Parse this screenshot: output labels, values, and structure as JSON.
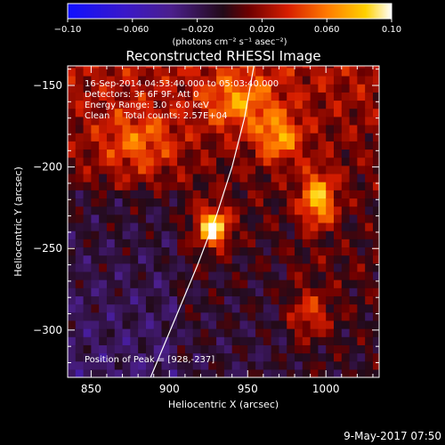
{
  "chart_data": {
    "type": "heatmap",
    "title": "Reconstructed RHESSI Image",
    "xlabel": "Heliocentric X (arcsec)",
    "ylabel": "Heliocentric Y (arcsec)",
    "xlim": [
      835,
      1034
    ],
    "ylim": [
      -329,
      -138
    ],
    "x_ticks": [
      850,
      900,
      950,
      1000
    ],
    "x_tick_labels": [
      "850",
      "900",
      "950",
      "1000"
    ],
    "y_ticks": [
      -150,
      -200,
      -250,
      -300
    ],
    "y_tick_labels": [
      "-150",
      "-200",
      "-250",
      "-300"
    ],
    "colorbar": {
      "range": [
        -0.1,
        0.1
      ],
      "ticks": [
        -0.1,
        -0.06,
        -0.02,
        0.02,
        0.06,
        0.1
      ],
      "tick_labels": [
        "-0.10",
        "-0.060",
        "-0.020",
        "0.020",
        "0.060",
        "0.10"
      ],
      "units_label": "(photons cm⁻² s⁻¹ asec⁻²)",
      "colormap": "blue-purple-red-orange-yellow-white"
    },
    "info_lines": [
      "16-Sep-2014 04:53:40.000 to 05:03:40.000",
      "Detectors: 3F 6F 9F, Att 0",
      "Energy Range: 3.0 - 6.0 keV",
      "Clean     Total counts: 2.57E+04"
    ],
    "peak_label": "Position of Peak = [928,-237]",
    "peak": {
      "x": 928,
      "y": -237
    },
    "sources": [
      {
        "x": 928,
        "y": -237,
        "value": 0.1,
        "sx": 7,
        "sy": 8
      },
      {
        "x": 995,
        "y": -220,
        "value": 0.075,
        "sx": 8,
        "sy": 12
      },
      {
        "x": 970,
        "y": -182,
        "value": 0.055,
        "sx": 10,
        "sy": 10
      },
      {
        "x": 945,
        "y": -160,
        "value": 0.045,
        "sx": 16,
        "sy": 12
      },
      {
        "x": 880,
        "y": -185,
        "value": 0.04,
        "sx": 18,
        "sy": 14
      },
      {
        "x": 990,
        "y": -290,
        "value": 0.04,
        "sx": 9,
        "sy": 10
      }
    ],
    "limb": [
      [
        888,
        -329
      ],
      [
        905,
        -290
      ],
      [
        918,
        -260
      ],
      [
        930,
        -230
      ],
      [
        940,
        -200
      ],
      [
        948,
        -170
      ],
      [
        954,
        -138
      ]
    ],
    "grid": false
  },
  "footer": {
    "timestamp": "9-May-2017 07:50"
  },
  "colors": {
    "background": "#000000",
    "axes": "#ffffff"
  }
}
